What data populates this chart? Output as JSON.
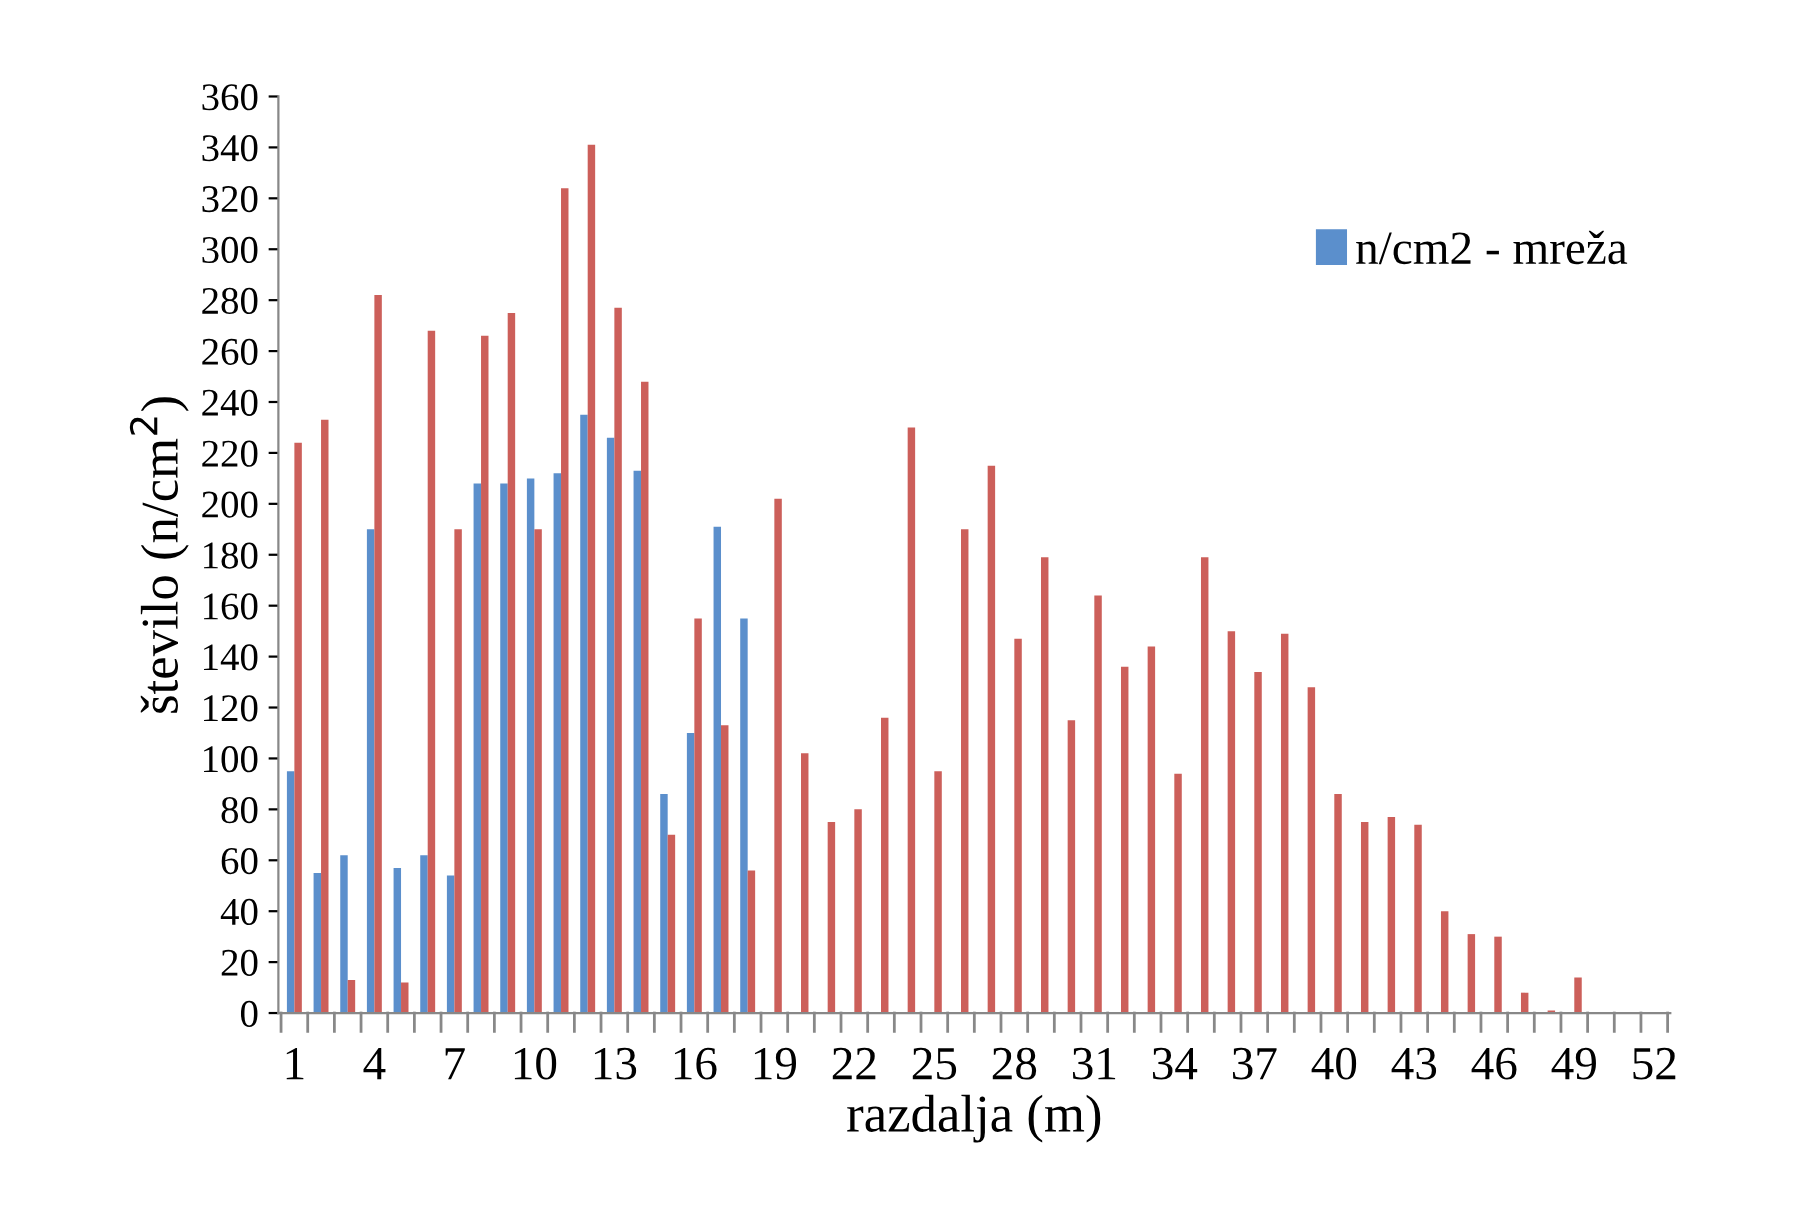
{
  "chart_data": {
    "type": "bar",
    "xlabel": "razdalja (m)",
    "ylabel": "število (n/cm$^{2}$)",
    "categories": [
      "1",
      null,
      null,
      "4",
      null,
      null,
      "7",
      null,
      null,
      "10",
      null,
      null,
      "13",
      null,
      null,
      "16",
      null,
      null,
      "19",
      null,
      null,
      "22",
      null,
      null,
      "25",
      null,
      null,
      "28",
      null,
      null,
      "31",
      null,
      null,
      "34",
      null,
      null,
      "37",
      null,
      null,
      "40",
      null,
      null,
      "43",
      null,
      null,
      "46",
      null,
      null,
      "49",
      null,
      null,
      "52"
    ],
    "series": [
      {
        "name": "n/cm2 - mreža",
        "color": "#5b8fcc",
        "values": [
          95,
          55,
          62,
          190,
          57,
          62,
          54,
          208,
          208,
          210,
          212,
          235,
          226,
          213,
          86,
          110,
          191,
          155,
          null,
          null,
          null,
          null,
          null,
          null,
          null,
          null,
          null,
          null,
          null,
          null,
          null,
          null,
          null,
          null,
          null,
          null,
          null,
          null,
          null,
          null,
          null,
          null,
          null,
          null,
          null,
          null,
          null,
          null,
          null,
          null,
          null,
          null
        ]
      },
      {
        "color": "#cc5f5a",
        "values": [
          224,
          233,
          13,
          282,
          12,
          268,
          190,
          266,
          275,
          190,
          324,
          341,
          277,
          248,
          70,
          155,
          113,
          56,
          202,
          102,
          75,
          80,
          116,
          230,
          95,
          190,
          215,
          147,
          179,
          115,
          164,
          136,
          144,
          94,
          179,
          150,
          134,
          149,
          128,
          86,
          75,
          77,
          74,
          40,
          31,
          30,
          8,
          1,
          14,
          null,
          null,
          null
        ]
      }
    ],
    "ylim": [
      0,
      360
    ],
    "yticks": [
      0,
      20,
      40,
      60,
      80,
      100,
      120,
      140,
      160,
      180,
      200,
      220,
      240,
      260,
      280,
      300,
      320,
      340,
      360
    ],
    "grid": false,
    "legend": "top right"
  }
}
